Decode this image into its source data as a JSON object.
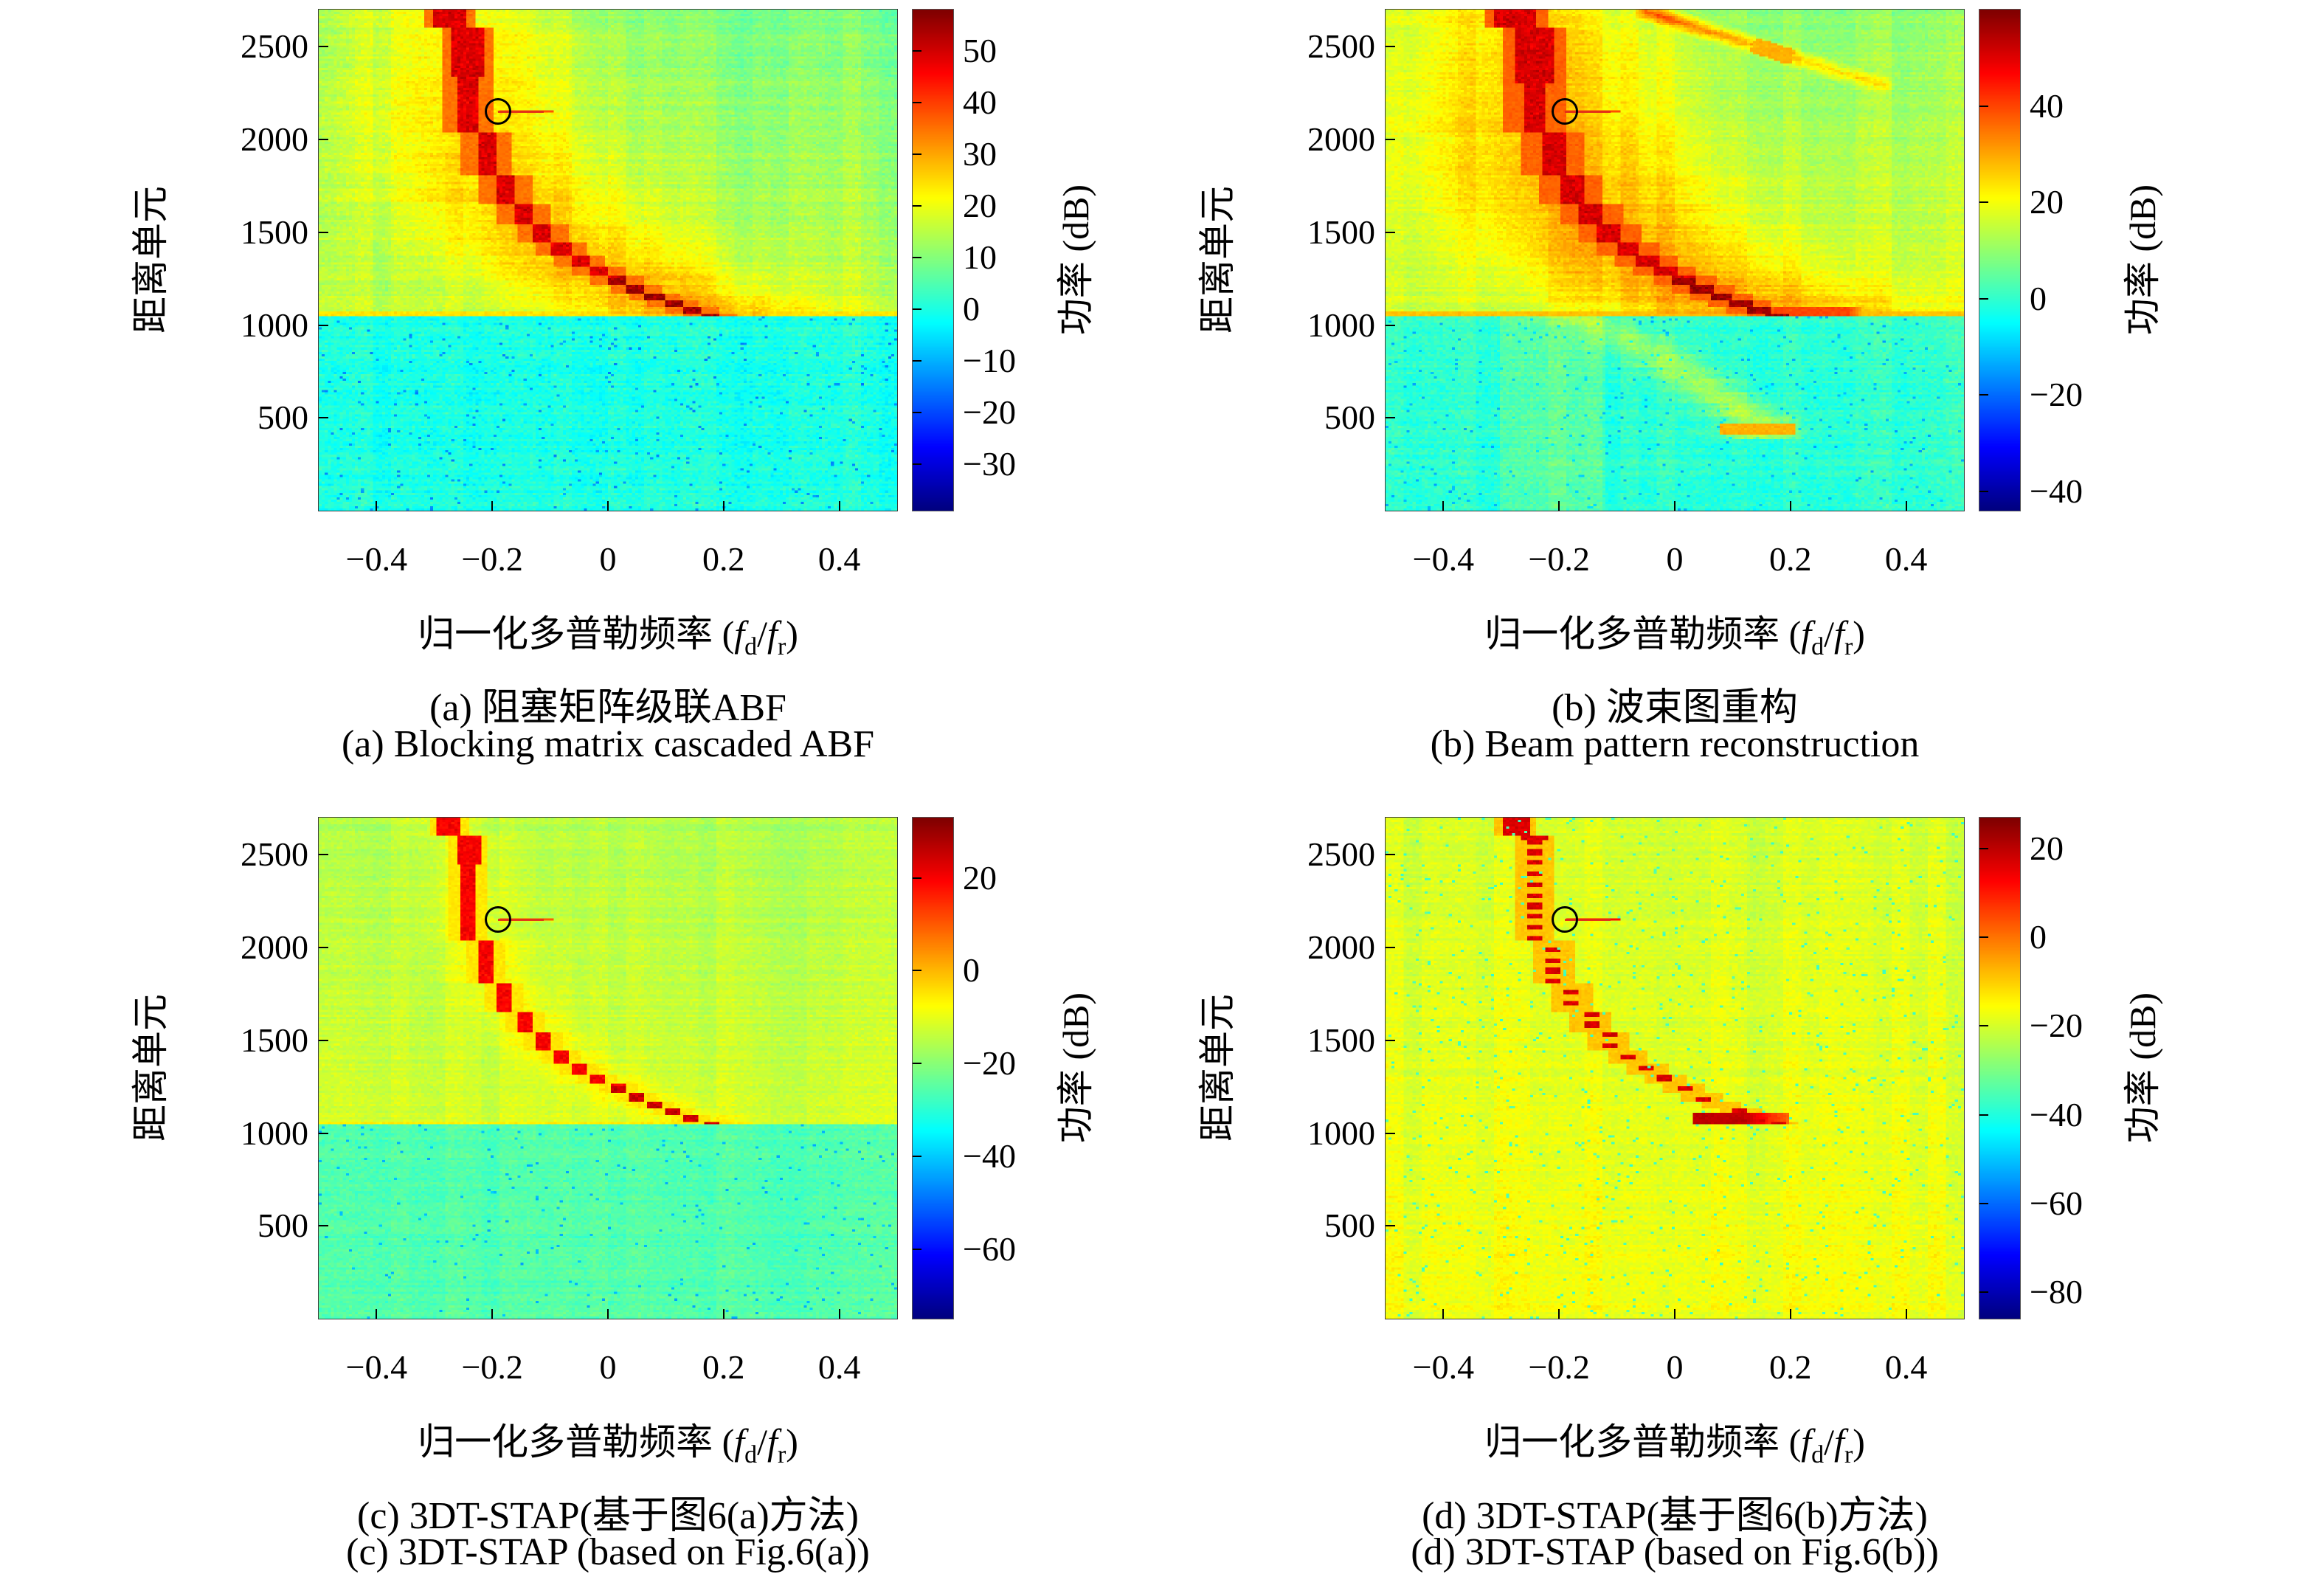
{
  "figure": {
    "ylabel": "距离单元",
    "cbar_label": "功率 (dB)",
    "xlabel": {
      "pre": "归一化多普勒频率 (",
      "f1": "f",
      "s1": "d",
      "slash": "/",
      "f2": "f",
      "s2": "r",
      "post": ")"
    }
  },
  "chart_data": [
    {
      "type": "heatmap",
      "caption_zh": "(a) 阻塞矩阵级联ABF",
      "caption_en": "(a) Blocking matrix cascaded ABF",
      "xlabel": "归一化多普勒频率 (fd/fr)",
      "ylabel": "距离单元",
      "x_range": [
        -0.5,
        0.5
      ],
      "y_range": [
        0,
        2700
      ],
      "x_ticks": [
        -0.4,
        -0.2,
        0,
        0.2,
        0.4
      ],
      "x_tick_labels": [
        "−0.4",
        "−0.2",
        "0",
        "0.2",
        "0.4"
      ],
      "y_ticks": [
        500,
        1000,
        1500,
        2000,
        2500
      ],
      "y_tick_labels": [
        "500",
        "1000",
        "1500",
        "2000",
        "2500"
      ],
      "colorbar": {
        "label": "功率 (dB)",
        "vmin": -39,
        "vmax": 58,
        "ticks": [
          50,
          40,
          30,
          20,
          10,
          0,
          -10,
          -20,
          -30
        ],
        "tick_labels": [
          "50",
          "40",
          "30",
          "20",
          "10",
          "0",
          "−10",
          "−20",
          "−30"
        ]
      },
      "clutter_ridge": {
        "x_top": -0.26,
        "x_end": 0.17,
        "y_top": 2700,
        "y_knee": 1050
      },
      "target_marker": {
        "x": -0.19,
        "y": 2150
      },
      "render": {
        "seed": 11,
        "two_regions": true,
        "upper_base": 9,
        "upper_grad": 7,
        "upper_noise": 3.2,
        "col_amp": 2.2,
        "row_amp": 1.6,
        "glow_amp": 13,
        "glow_w": 0.22,
        "core_val": 49,
        "core_noise": 5,
        "core_hw": 0.016,
        "top_extra": 0.013,
        "top_wide_y": 2340,
        "halo_val": 35,
        "halo_w": 0.045,
        "lower_base": 0,
        "lower_noise": 3.8,
        "speck_p": 0.02,
        "speck_val": -13,
        "boundary_val": 24,
        "boundary_h": 24,
        "knee_boost": 6,
        "mline_val": 38
      }
    },
    {
      "type": "heatmap",
      "caption_zh": "(b) 波束图重构",
      "caption_en": "(b) Beam pattern reconstruction",
      "xlabel": "归一化多普勒频率 (fd/fr)",
      "ylabel": "距离单元",
      "x_range": [
        -0.5,
        0.5
      ],
      "y_range": [
        0,
        2700
      ],
      "x_ticks": [
        -0.4,
        -0.2,
        0,
        0.2,
        0.4
      ],
      "x_tick_labels": [
        "−0.4",
        "−0.2",
        "0",
        "0.2",
        "0.4"
      ],
      "y_ticks": [
        500,
        1000,
        1500,
        2000,
        2500
      ],
      "y_tick_labels": [
        "500",
        "1000",
        "1500",
        "2000",
        "2500"
      ],
      "colorbar": {
        "label": "功率 (dB)",
        "vmin": -44,
        "vmax": 60,
        "ticks": [
          40,
          20,
          0,
          -20,
          -40
        ],
        "tick_labels": [
          "40",
          "20",
          "0",
          "−20",
          "−40"
        ]
      },
      "clutter_ridge": {
        "x_top": -0.26,
        "x_end": 0.17,
        "y_top": 2700,
        "y_knee": 1050
      },
      "target_marker": {
        "x": -0.19,
        "y": 2150
      },
      "render": {
        "seed": 22,
        "two_regions": true,
        "upper_base": 10,
        "upper_grad": 7,
        "upper_noise": 3.2,
        "col_amp": 2.4,
        "row_amp": 1.6,
        "glow_amp": 15,
        "glow_w": 0.26,
        "core_val": 51,
        "core_noise": 5,
        "core_hw": 0.02,
        "top_extra": 0.016,
        "top_wide_y": 2300,
        "halo_val": 37,
        "halo_w": 0.055,
        "lower_base": 0,
        "lower_noise": 3.8,
        "speck_p": 0.02,
        "speck_val": -13,
        "boundary_val": 27,
        "boundary_h": 24,
        "knee_boost": 6,
        "streak": {
          "x1": -0.05,
          "y1": 2690,
          "x2": 0.36,
          "y2": 2290,
          "w": 0.022,
          "amp": 12,
          "dash_t1": 0.45,
          "dash_t2": 0.62,
          "dash_val": 29
        },
        "wedge": {
          "x_top": -0.17,
          "y_top": 1045,
          "x_bot": 0.16,
          "y_bot": 430,
          "w": 0.06,
          "amp": 15,
          "tip_val": 29,
          "tip_y1": 405,
          "tip_y2": 475,
          "tip_x1": 0.08,
          "tip_x2": 0.21
        },
        "lower_stripes": {
          "x1": -0.3,
          "x2": -0.12,
          "amp": 6
        },
        "tail": {
          "y1": 1050,
          "y2": 1092,
          "x1": 0.17,
          "x2": 0.38,
          "val": 40
        },
        "mline_val": 39
      }
    },
    {
      "type": "heatmap",
      "caption_zh": "(c) 3DT-STAP(基于图6(a)方法)",
      "caption_en": "(c) 3DT-STAP (based on Fig.6(a))",
      "xlabel": "归一化多普勒频率 (fd/fr)",
      "ylabel": "距离单元",
      "x_range": [
        -0.5,
        0.5
      ],
      "y_range": [
        0,
        2700
      ],
      "x_ticks": [
        -0.4,
        -0.2,
        0,
        0.2,
        0.4
      ],
      "x_tick_labels": [
        "−0.4",
        "−0.2",
        "0",
        "0.2",
        "0.4"
      ],
      "y_ticks": [
        500,
        1000,
        1500,
        2000,
        2500
      ],
      "y_tick_labels": [
        "500",
        "1000",
        "1500",
        "2000",
        "2500"
      ],
      "colorbar": {
        "label": "功率 (dB)",
        "vmin": -75,
        "vmax": 33,
        "ticks": [
          20,
          0,
          -20,
          -40,
          -60
        ],
        "tick_labels": [
          "20",
          "0",
          "−20",
          "−40",
          "−60"
        ]
      },
      "clutter_ridge": {
        "x_top": -0.26,
        "x_end": 0.14,
        "y_top": 2700,
        "y_knee": 1050
      },
      "target_marker": {
        "x": -0.19,
        "y": 2150
      },
      "render": {
        "seed": 33,
        "two_regions": true,
        "upper_base": -16,
        "upper_grad": 4,
        "upper_noise": 2.8,
        "col_amp": 1.8,
        "row_amp": 1.4,
        "glow_amp": 6,
        "glow_w": 0.07,
        "core_val": 20,
        "core_noise": 4,
        "core_hw": 0.013,
        "top_extra": 0.008,
        "top_wide_y": 2450,
        "halo_val": -5,
        "halo_w": 0.034,
        "lower_base": -26,
        "lower_noise": 3.2,
        "speck_p": 0.015,
        "speck_val": -42,
        "boundary_val": -6,
        "boundary_h": 14,
        "boundary_xmax": 0.25,
        "knee_boost": 5,
        "mline_val": 10
      }
    },
    {
      "type": "heatmap",
      "caption_zh": "(d) 3DT-STAP(基于图6(b)方法)",
      "caption_en": "(d) 3DT-STAP (based on Fig.6(b))",
      "xlabel": "归一化多普勒频率 (fd/fr)",
      "ylabel": "距离单元",
      "x_range": [
        -0.5,
        0.5
      ],
      "y_range": [
        0,
        2700
      ],
      "x_ticks": [
        -0.4,
        -0.2,
        0,
        0.2,
        0.4
      ],
      "x_tick_labels": [
        "−0.4",
        "−0.2",
        "0",
        "0.2",
        "0.4"
      ],
      "y_ticks": [
        500,
        1000,
        1500,
        2000,
        2500
      ],
      "y_tick_labels": [
        "500",
        "1000",
        "1500",
        "2000",
        "2500"
      ],
      "colorbar": {
        "label": "功率 (dB)",
        "vmin": -86,
        "vmax": 27,
        "ticks": [
          20,
          0,
          -20,
          -40,
          -60,
          -80
        ],
        "tick_labels": [
          "20",
          "0",
          "−20",
          "−40",
          "−60",
          "−80"
        ]
      },
      "clutter_ridge": {
        "x_top": -0.26,
        "x_end": 0.18,
        "y_top": 2700,
        "y_knee": 1050,
        "style": "dashed"
      },
      "target_marker": {
        "x": -0.19,
        "y": 2150
      },
      "render": {
        "seed": 44,
        "two_regions": false,
        "upper_base": -20,
        "upper_grad": 2,
        "upper_noise": 3.0,
        "col_amp": 2.0,
        "row_amp": 1.5,
        "glow_amp": 0,
        "glow_w": 0.1,
        "core_val": 17,
        "core_noise": 4,
        "core_hw": 0.013,
        "top_extra": 0.01,
        "top_wide_y": 2585,
        "halo_val": -9,
        "halo_w": 0.036,
        "lower_base": -20,
        "lower_noise": 3.0,
        "speck_p": 0.02,
        "speck_val": -36,
        "dashed": true,
        "dash_period": 58,
        "dash_duty": 0.45,
        "tail": {
          "y1": 1048,
          "y2": 1108,
          "x1": 0.03,
          "x2": 0.2,
          "val": 20
        },
        "mline_val": 12
      }
    }
  ]
}
